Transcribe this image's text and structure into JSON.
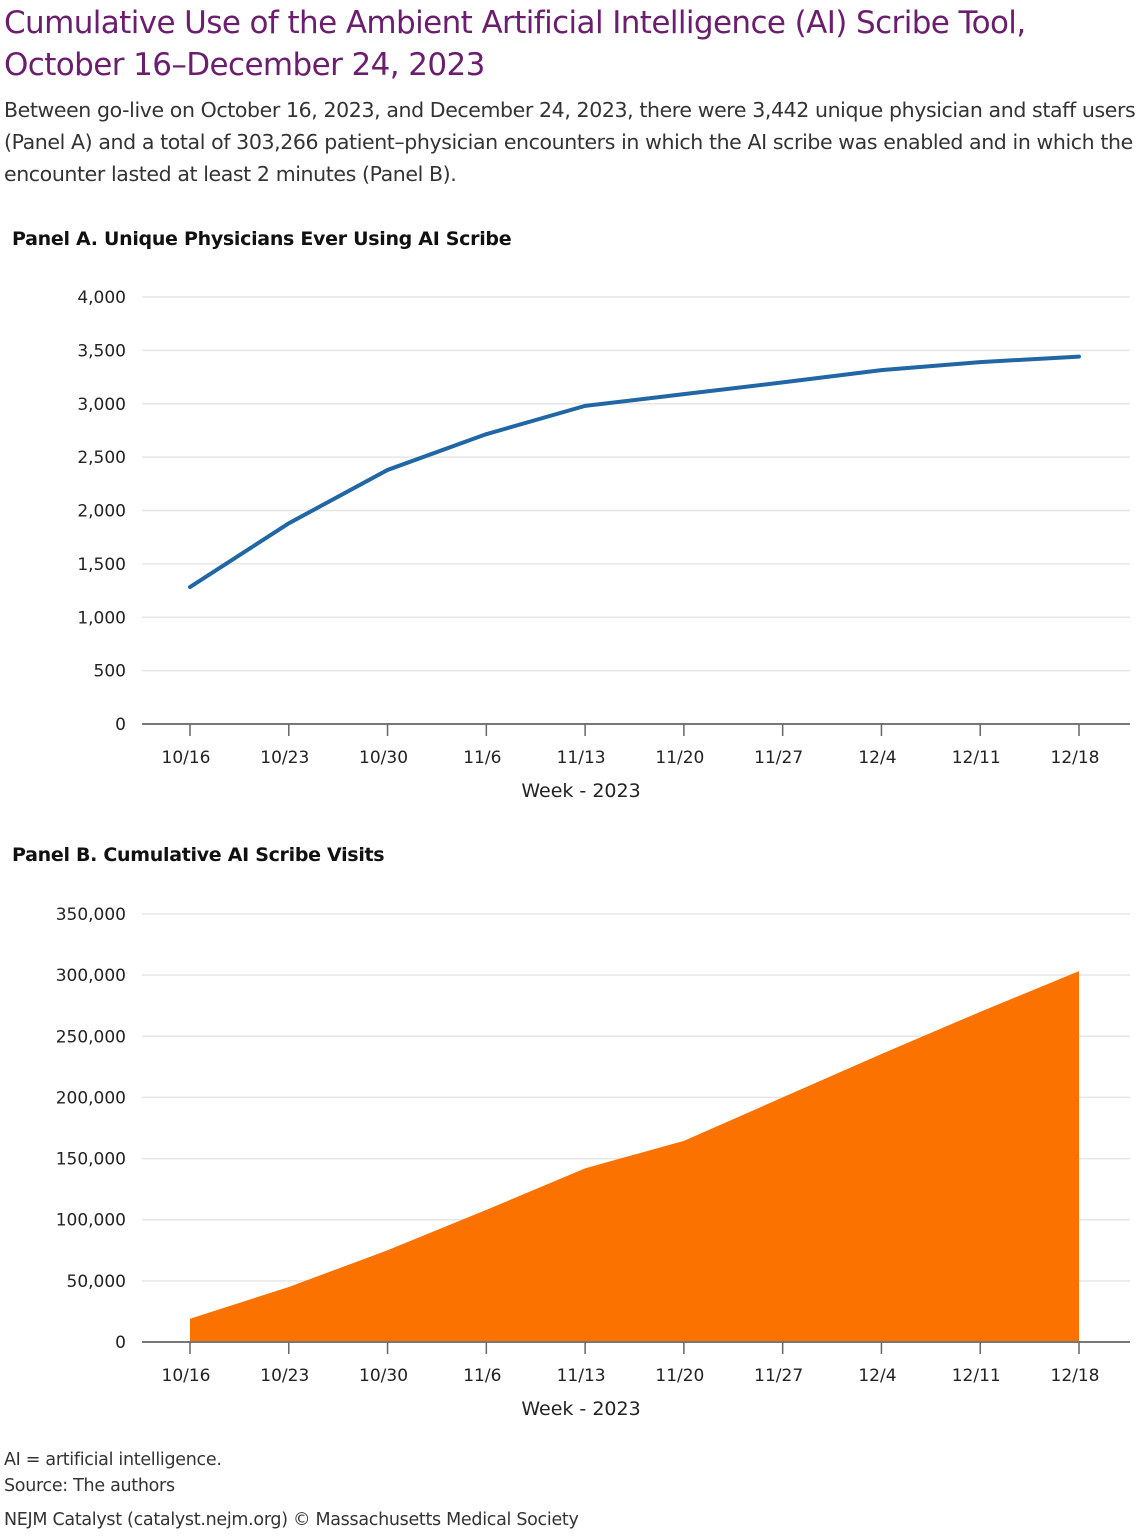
{
  "title": "Cumulative Use of the Ambient Artificial Intelligence (AI) Scribe Tool, October 16–December 24, 2023",
  "subtitle": "Between go-live on October 16, 2023, and December 24, 2023, there were 3,442 unique physician and staff users (Panel A) and a total of 303,266 patient–physician encounters in which the AI scribe was enabled and in which the encounter lasted at least 2 minutes (Panel B).",
  "colors": {
    "title": "#6b1d6e",
    "line": "#2166a5",
    "area": "#fb7200",
    "grid": "#e6e6e6"
  },
  "chart_data": [
    {
      "type": "line",
      "title": "Panel A. Unique Physicians Ever Using AI Scribe",
      "xlabel": "Week - 2023",
      "ylabel": "",
      "categories": [
        "10/16",
        "10/23",
        "10/30",
        "11/6",
        "11/13",
        "11/20",
        "11/27",
        "12/4",
        "12/11",
        "12/18"
      ],
      "values": [
        1283,
        1880,
        2380,
        2715,
        2980,
        3090,
        3200,
        3315,
        3390,
        3442
      ],
      "yticks": [
        "0",
        "500",
        "1,000",
        "1,500",
        "2,000",
        "2,500",
        "3,000",
        "3,500",
        "4,000"
      ],
      "ylim": [
        0,
        4000
      ],
      "grid": true,
      "legend": null
    },
    {
      "type": "area",
      "title": "Panel B. Cumulative AI Scribe Visits",
      "xlabel": "Week - 2023",
      "ylabel": "",
      "categories": [
        "10/16",
        "10/23",
        "10/30",
        "11/6",
        "11/13",
        "11/20",
        "11/27",
        "12/4",
        "12/11",
        "12/18"
      ],
      "values": [
        19000,
        45000,
        75000,
        108000,
        142000,
        164500,
        200000,
        235500,
        270000,
        303266
      ],
      "yticks": [
        "0",
        "50,000",
        "100,000",
        "150,000",
        "200,000",
        "250,000",
        "300,000",
        "350,000"
      ],
      "ylim": [
        0,
        350000
      ],
      "grid": true,
      "legend": null
    }
  ],
  "footer": {
    "abbreviation": "AI = artificial intelligence.",
    "source": "Source: The authors",
    "credit": "NEJM Catalyst (catalyst.nejm.org) © Massachusetts Medical Society"
  }
}
